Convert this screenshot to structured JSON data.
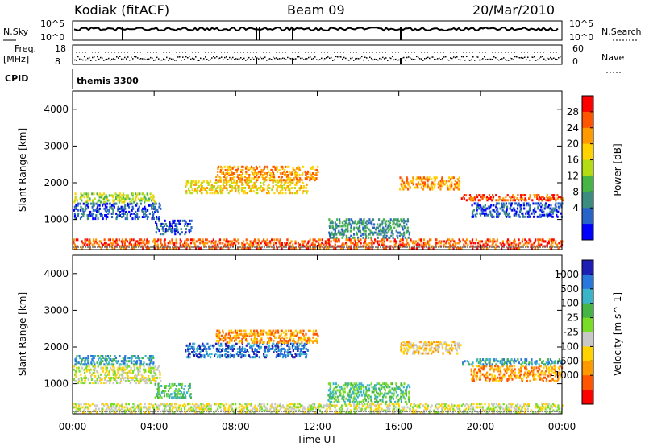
{
  "header": {
    "station": "Kodiak (fitACF)",
    "beam": "Beam 09",
    "date": "20/Mar/2010"
  },
  "top_panels": {
    "nsky_label": "N.Sky",
    "nsky_ticks": [
      "10^5",
      "10^0"
    ],
    "nsearch_label": "N.Search",
    "nsearch_ticks": [
      "10^5",
      "10^0"
    ],
    "freq_label": "Freq.",
    "freq_unit": "[MHz]",
    "freq_ticks": [
      "18",
      "8"
    ],
    "nave_label": "Nave",
    "nave_ticks": [
      "60",
      "0"
    ],
    "cpid_label": "CPID",
    "cpid_value": "themis 3300"
  },
  "chart_data": [
    {
      "type": "heatmap",
      "name": "power",
      "ylabel": "Slant Range [km]",
      "yticks": [
        "4000",
        "3000",
        "2000",
        "1000"
      ],
      "ylim": [
        180,
        4500
      ],
      "xlim": [
        0,
        24
      ],
      "colorbar_label": "Power [dB]",
      "colorbar_ticks": [
        "28",
        "24",
        "20",
        "16",
        "12",
        "8",
        "4"
      ],
      "colorbar_colors": [
        "#ff0000",
        "#ff5500",
        "#ff9900",
        "#ffd200",
        "#b4dc14",
        "#46b446",
        "#3c8c82",
        "#2864c8",
        "#0000ff"
      ],
      "bands": [
        {
          "t0": 0.0,
          "t1": 4.3,
          "r0": 1000,
          "r1": 1450,
          "level": 7
        },
        {
          "t0": 0.0,
          "t1": 4.0,
          "r0": 1450,
          "r1": 1700,
          "level": 4
        },
        {
          "t0": 4.0,
          "t1": 5.8,
          "r0": 580,
          "r1": 1000,
          "level": 7
        },
        {
          "t0": 5.5,
          "t1": 11.5,
          "r0": 1700,
          "r1": 2050,
          "level": 3
        },
        {
          "t0": 7.0,
          "t1": 12.0,
          "r0": 2050,
          "r1": 2450,
          "level": 2
        },
        {
          "t0": 12.5,
          "t1": 16.5,
          "r0": 480,
          "r1": 1000,
          "level": 6
        },
        {
          "t0": 16.0,
          "t1": 19.0,
          "r0": 1800,
          "r1": 2150,
          "level": 2
        },
        {
          "t0": 19.5,
          "t1": 24.0,
          "r0": 1050,
          "r1": 1450,
          "level": 7
        },
        {
          "t0": 19.0,
          "t1": 24.0,
          "r0": 1500,
          "r1": 1700,
          "level": 1
        },
        {
          "t0": 0.0,
          "t1": 24.0,
          "r0": 200,
          "r1": 450,
          "level": 1
        }
      ]
    },
    {
      "type": "heatmap",
      "name": "velocity",
      "ylabel": "Slant Range [km]",
      "yticks": [
        "4000",
        "3000",
        "2000",
        "1000"
      ],
      "ylim": [
        180,
        4500
      ],
      "xlim": [
        0,
        24
      ],
      "xlabel": "Time UT",
      "xticks": [
        "00:00",
        "04:00",
        "08:00",
        "12:00",
        "16:00",
        "20:00",
        "00:00"
      ],
      "colorbar_label": "Velocity [m s^-1]",
      "colorbar_ticks": [
        "1000",
        "500",
        "100",
        "25",
        "-25",
        "-100",
        "-500",
        "-1000"
      ],
      "colorbar_colors": [
        "#1e1eb4",
        "#2878dc",
        "#3cb4c8",
        "#46b446",
        "#78dc28",
        "#c8c8c8",
        "#ffd200",
        "#ff9900",
        "#ff5500",
        "#ff0000"
      ],
      "bands": [
        {
          "t0": 0.0,
          "t1": 4.3,
          "r0": 1000,
          "r1": 1500,
          "level": 5
        },
        {
          "t0": 0.0,
          "t1": 4.0,
          "r0": 1500,
          "r1": 1750,
          "level": 2
        },
        {
          "t0": 4.0,
          "t1": 5.8,
          "r0": 600,
          "r1": 1000,
          "level": 3
        },
        {
          "t0": 5.5,
          "t1": 11.5,
          "r0": 1700,
          "r1": 2100,
          "level": 1
        },
        {
          "t0": 7.0,
          "t1": 12.0,
          "r0": 2100,
          "r1": 2450,
          "level": 7
        },
        {
          "t0": 12.5,
          "t1": 16.5,
          "r0": 480,
          "r1": 1000,
          "level": 3
        },
        {
          "t0": 16.0,
          "t1": 19.0,
          "r0": 1800,
          "r1": 2150,
          "level": 6
        },
        {
          "t0": 19.5,
          "t1": 24.0,
          "r0": 1050,
          "r1": 1500,
          "level": 7
        },
        {
          "t0": 19.0,
          "t1": 24.0,
          "r0": 1500,
          "r1": 1700,
          "level": 2
        },
        {
          "t0": 0.0,
          "t1": 24.0,
          "r0": 200,
          "r1": 450,
          "level": 5
        }
      ]
    }
  ]
}
